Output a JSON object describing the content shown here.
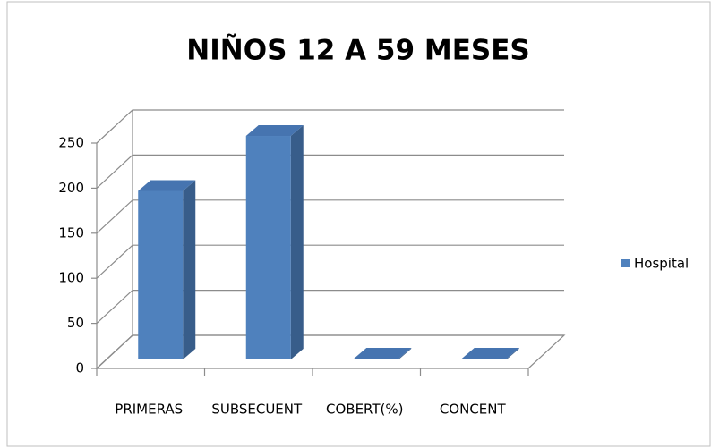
{
  "chart_data": {
    "type": "bar3d",
    "title": "NIÑOS 12 A 59 MESES",
    "categories": [
      "PRIMERAS",
      "SUBSECUENT",
      "COBERT(%)",
      "CONCENT"
    ],
    "series": [
      {
        "name": "Hospital",
        "color": "#4f81bd",
        "values": [
          187,
          248,
          1,
          1
        ]
      }
    ],
    "ylim": [
      0,
      250
    ],
    "yticks": [
      0,
      50,
      100,
      150,
      200,
      250
    ],
    "grid": true,
    "legend": "right"
  }
}
